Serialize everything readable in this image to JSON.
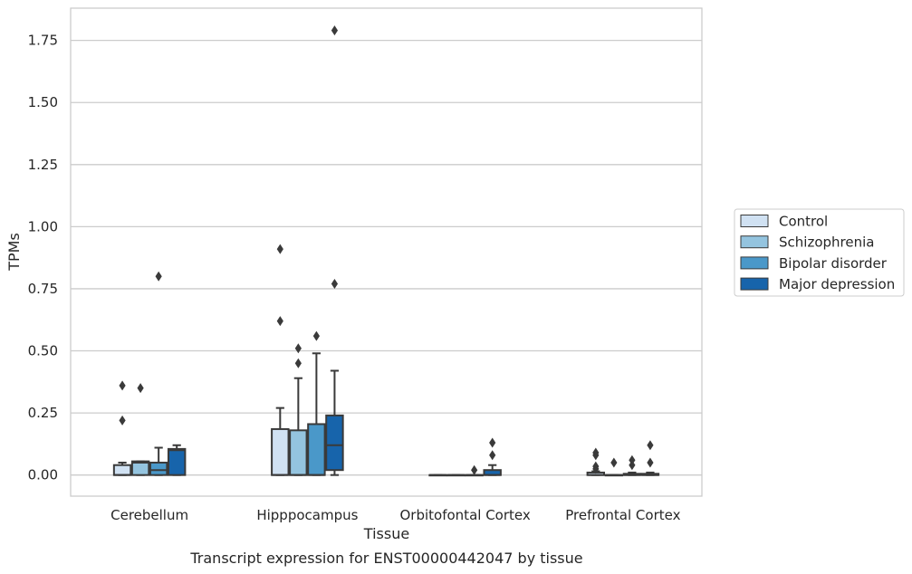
{
  "caption": "Transcript expression for ENST00000442047 by tissue",
  "chart_data": {
    "type": "box",
    "xlabel": "Tissue",
    "ylabel": "TPMs",
    "ylim": [
      -0.085,
      1.88
    ],
    "yticks": [
      "0.00",
      "0.25",
      "0.50",
      "0.75",
      "1.00",
      "1.25",
      "1.50",
      "1.75"
    ],
    "grid": "horizontal",
    "legend_position": "right",
    "categories": [
      "Cerebellum",
      "Hipppocampus",
      "Orbitofontal Cortex",
      "Prefrontal Cortex"
    ],
    "series": [
      {
        "name": "Control",
        "color": "#d0e1f2",
        "boxes": [
          {
            "q1": 0.0,
            "median": 0.0,
            "q3": 0.04,
            "whisker_low": 0.0,
            "whisker_high": 0.05,
            "outliers": [
              0.22,
              0.36
            ]
          },
          {
            "q1": 0.0,
            "median": 0.0,
            "q3": 0.185,
            "whisker_low": 0.0,
            "whisker_high": 0.27,
            "outliers": [
              0.62,
              0.91
            ]
          },
          {
            "q1": 0.0,
            "median": 0.0,
            "q3": 0.0,
            "whisker_low": 0.0,
            "whisker_high": 0.0,
            "outliers": []
          },
          {
            "q1": 0.0,
            "median": 0.0,
            "q3": 0.01,
            "whisker_low": 0.0,
            "whisker_high": 0.015,
            "outliers": [
              0.025,
              0.035,
              0.08,
              0.09
            ]
          }
        ]
      },
      {
        "name": "Schizophrenia",
        "color": "#94c4df",
        "boxes": [
          {
            "q1": 0.0,
            "median": 0.05,
            "q3": 0.055,
            "whisker_low": 0.0,
            "whisker_high": 0.055,
            "outliers": [
              0.35
            ]
          },
          {
            "q1": 0.0,
            "median": 0.0,
            "q3": 0.18,
            "whisker_low": 0.0,
            "whisker_high": 0.39,
            "outliers": [
              0.45,
              0.51
            ]
          },
          {
            "q1": 0.0,
            "median": 0.0,
            "q3": 0.0,
            "whisker_low": 0.0,
            "whisker_high": 0.0,
            "outliers": []
          },
          {
            "q1": 0.0,
            "median": 0.0,
            "q3": 0.0,
            "whisker_low": 0.0,
            "whisker_high": 0.0,
            "outliers": [
              0.05
            ]
          }
        ]
      },
      {
        "name": "Bipolar disorder",
        "color": "#4a98c9",
        "boxes": [
          {
            "q1": 0.0,
            "median": 0.02,
            "q3": 0.05,
            "whisker_low": 0.0,
            "whisker_high": 0.11,
            "outliers": [
              0.8
            ]
          },
          {
            "q1": 0.0,
            "median": 0.0,
            "q3": 0.205,
            "whisker_low": 0.0,
            "whisker_high": 0.49,
            "outliers": [
              0.56
            ]
          },
          {
            "q1": 0.0,
            "median": 0.0,
            "q3": 0.0,
            "whisker_low": 0.0,
            "whisker_high": 0.0,
            "outliers": [
              0.02
            ]
          },
          {
            "q1": 0.0,
            "median": 0.0,
            "q3": 0.005,
            "whisker_low": 0.0,
            "whisker_high": 0.01,
            "outliers": [
              0.04,
              0.06
            ]
          }
        ]
      },
      {
        "name": "Major depression",
        "color": "#1764ab",
        "boxes": [
          {
            "q1": 0.0,
            "median": 0.1,
            "q3": 0.105,
            "whisker_low": 0.0,
            "whisker_high": 0.12,
            "outliers": []
          },
          {
            "q1": 0.02,
            "median": 0.12,
            "q3": 0.24,
            "whisker_low": 0.0,
            "whisker_high": 0.42,
            "outliers": [
              0.77,
              1.79
            ]
          },
          {
            "q1": 0.0,
            "median": 0.0,
            "q3": 0.02,
            "whisker_low": 0.0,
            "whisker_high": 0.04,
            "outliers": [
              0.08,
              0.13
            ]
          },
          {
            "q1": 0.0,
            "median": 0.0,
            "q3": 0.005,
            "whisker_low": 0.0,
            "whisker_high": 0.01,
            "outliers": [
              0.05,
              0.12
            ]
          }
        ]
      }
    ]
  }
}
